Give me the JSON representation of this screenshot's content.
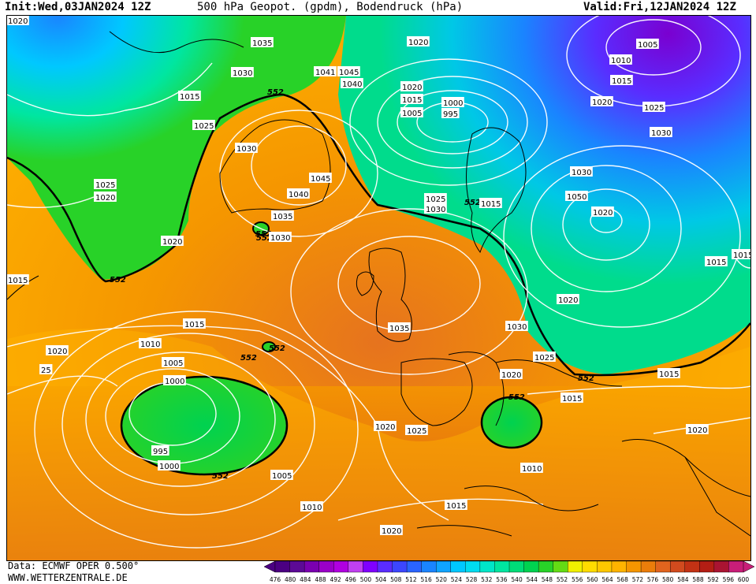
{
  "header": {
    "init_label": "Init:",
    "init_value": "Wed,03JAN2024 12Z",
    "title": "500 hPa Geopot. (gpdm), Bodendruck (hPa)",
    "valid_label": "Valid:",
    "valid_value": "Fri,12JAN2024 12Z"
  },
  "footer": {
    "data_source": "Data: ECMWF OPER 0.500°",
    "website": "WWW.WETTERZENTRALE.DE"
  },
  "colorbar": {
    "ticks": [
      "476",
      "480",
      "484",
      "488",
      "492",
      "496",
      "500",
      "504",
      "508",
      "512",
      "516",
      "520",
      "524",
      "528",
      "532",
      "536",
      "540",
      "544",
      "548",
      "552",
      "556",
      "560",
      "564",
      "568",
      "572",
      "576",
      "580",
      "584",
      "588",
      "592",
      "596",
      "600"
    ],
    "colors": [
      "#4b0082",
      "#5c0a96",
      "#7a00b0",
      "#9a00c8",
      "#b000e0",
      "#c040f0",
      "#8000ff",
      "#5a2cff",
      "#3c46ff",
      "#2a64ff",
      "#1a84ff",
      "#10a4ff",
      "#00c8ff",
      "#00dcf0",
      "#00e6c8",
      "#00e6a0",
      "#00dc78",
      "#00d250",
      "#28d228",
      "#64dc14",
      "#f0f000",
      "#ffdc00",
      "#ffc800",
      "#ffb400",
      "#f59600",
      "#eb7d0a",
      "#e1641e",
      "#d24b1e",
      "#c33214",
      "#b41e14",
      "#aa1432",
      "#c81e78"
    ]
  },
  "geopotential_labels": [
    {
      "text": "552"
    },
    {
      "text": "552"
    },
    {
      "text": "552"
    },
    {
      "text": "552"
    },
    {
      "text": "552"
    },
    {
      "text": "552"
    },
    {
      "text": "552"
    },
    {
      "text": "552"
    },
    {
      "text": "552"
    },
    {
      "text": "552"
    }
  ],
  "pressure_labels": [
    "1035",
    "1030",
    "1015",
    "1025",
    "1030",
    "1025",
    "1020",
    "1020",
    "1041",
    "1045",
    "1040",
    "1020",
    "1015",
    "1005",
    "1000",
    "995",
    "1005",
    "1010",
    "1015",
    "1020",
    "1025",
    "1030",
    "1030",
    "1050",
    "1040",
    "1045",
    "1035",
    "1030",
    "1020",
    "1025",
    "1030",
    "1015",
    "1020",
    "1035",
    "1030",
    "1015",
    "1010",
    "1005",
    "1000",
    "995",
    "1000",
    "1005",
    "1010",
    "1020",
    "1025",
    "1025",
    "1020",
    "1015",
    "1015",
    "1010",
    "1015",
    "1020",
    "1020",
    "1015",
    "1020",
    "1020",
    "1015",
    "25",
    "1015",
    "1020"
  ]
}
